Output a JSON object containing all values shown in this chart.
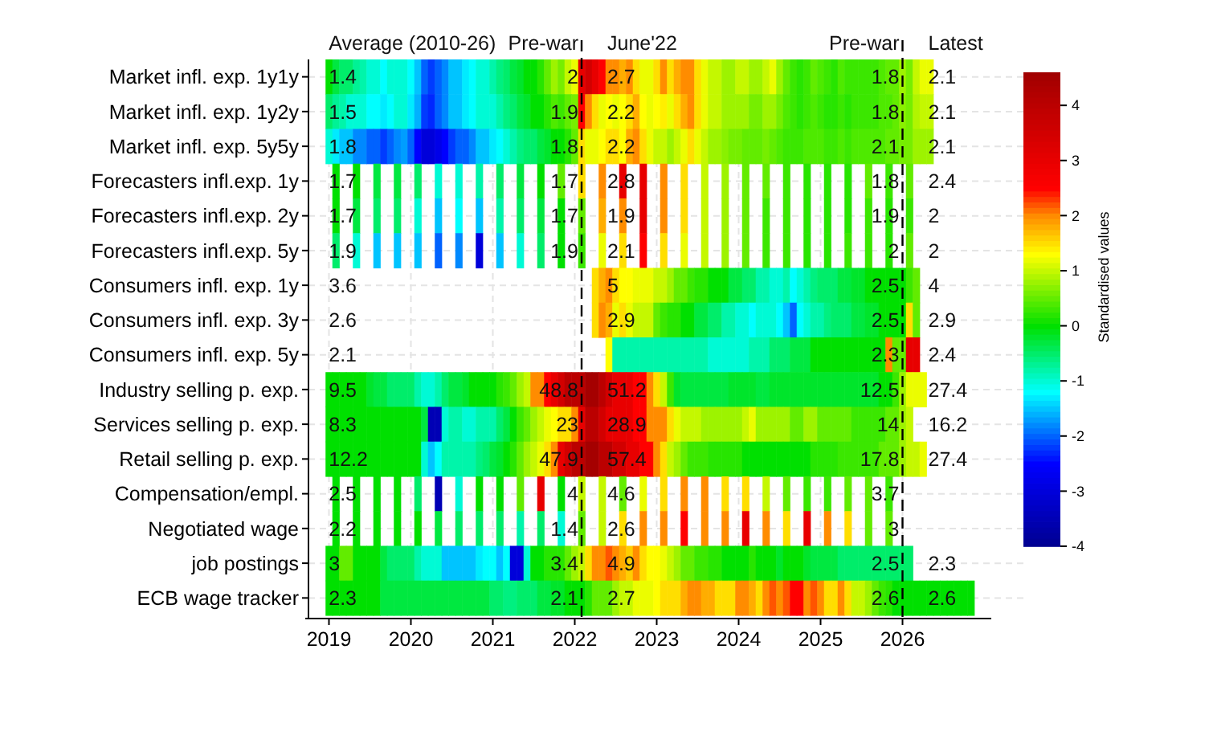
{
  "chart_data": {
    "type": "heatmap",
    "y_categories": [
      "Market infl. exp. 1y1y",
      "Market infl. exp. 1y2y",
      "Market infl. exp. 5y5y",
      "Forecasters infl.exp. 1y",
      "Forecasters infl.exp. 2y",
      "Forecasters infl.exp. 5y",
      "Consumers infl. exp. 1y",
      "Consumers infl. exp. 3y",
      "Consumers infl. exp. 5y",
      "Industry selling p. exp.",
      "Services selling p. exp.",
      "Retail selling p. exp.",
      "Compensation/empl.",
      "Negotiated wage",
      "job postings",
      "ECB wage tracker"
    ],
    "x": [
      "2019-01",
      "2019-02",
      "2019-03",
      "2019-04",
      "2019-05",
      "2019-06",
      "2019-07",
      "2019-08",
      "2019-09",
      "2019-10",
      "2019-11",
      "2019-12",
      "2020-01",
      "2020-02",
      "2020-03",
      "2020-04",
      "2020-05",
      "2020-06",
      "2020-07",
      "2020-08",
      "2020-09",
      "2020-10",
      "2020-11",
      "2020-12",
      "2021-01",
      "2021-02",
      "2021-03",
      "2021-04",
      "2021-05",
      "2021-06",
      "2021-07",
      "2021-08",
      "2021-09",
      "2021-10",
      "2021-11",
      "2021-12",
      "2022-01",
      "2022-02",
      "2022-03",
      "2022-04",
      "2022-05",
      "2022-06",
      "2022-07",
      "2022-08",
      "2022-09",
      "2022-10",
      "2022-11",
      "2022-12",
      "2023-01",
      "2023-02",
      "2023-03",
      "2023-04",
      "2023-05",
      "2023-06",
      "2023-07",
      "2023-08",
      "2023-09",
      "2023-10",
      "2023-11",
      "2023-12",
      "2024-01",
      "2024-02",
      "2024-03",
      "2024-04",
      "2024-05",
      "2024-06",
      "2024-07",
      "2024-08",
      "2024-09",
      "2024-10",
      "2024-11",
      "2024-12",
      "2025-01",
      "2025-02",
      "2025-03",
      "2025-04",
      "2025-05",
      "2025-06",
      "2025-07",
      "2025-08",
      "2025-09",
      "2025-10",
      "2025-11",
      "2025-12",
      "2026-01",
      "2026-02",
      "2026-03",
      "2026-04",
      "2026-05",
      "2026-06",
      "2026-07",
      "2026-08",
      "2026-09",
      "2026-10",
      "2026-11"
    ],
    "cells": [
      [
        0,
        -0.3,
        -0.5,
        -0.5,
        -0.7,
        -0.8,
        -1,
        -1,
        -1.2,
        -1,
        -1,
        -1,
        -1.2,
        -1.5,
        -2,
        -2.2,
        -2,
        -1.8,
        -1.5,
        -1.5,
        -1.3,
        -1.2,
        -1,
        -1,
        -0.8,
        -0.6,
        -0.5,
        -0.3,
        -0.2,
        0,
        0,
        0.2,
        0.5,
        0.8,
        0.6,
        1,
        1.2,
        3,
        3.5,
        3,
        2.5,
        2,
        2,
        1.8,
        2,
        1.5,
        1.2,
        1.2,
        1.5,
        2,
        1.5,
        1.8,
        2,
        2,
        1.5,
        1.2,
        1,
        1,
        0.8,
        0.8,
        1,
        1,
        0.8,
        0.8,
        1,
        1.2,
        0.8,
        0.5,
        0.3,
        0.2,
        0.3,
        0.5,
        0.4,
        0.3,
        0.2,
        0.4,
        0.3,
        0.3,
        0.3,
        0.3,
        0.3,
        0.4,
        0.5,
        0.5,
        0.8,
        0.6,
        1,
        1.2,
        1.2,
        null,
        null,
        null,
        null,
        null,
        null
      ],
      [
        -0.5,
        -0.7,
        -0.8,
        -1,
        -1,
        -1,
        -1.2,
        -1.2,
        -1.3,
        -1.2,
        -1,
        -1,
        -1.3,
        -1.6,
        -2.2,
        -2.3,
        -2,
        -1.8,
        -1.5,
        -1.5,
        -1.3,
        -1.2,
        -1,
        -1,
        -1,
        -0.8,
        -0.6,
        -0.5,
        -0.3,
        -0.2,
        0,
        0,
        0.2,
        0.4,
        0.3,
        0.5,
        0.6,
        2.5,
        2,
        1.5,
        1.2,
        1.3,
        1.2,
        1.3,
        1.5,
        1.8,
        1.3,
        1.2,
        1.3,
        1.4,
        1.2,
        1.5,
        1.8,
        2,
        1.5,
        1.2,
        1,
        1,
        0.8,
        0.8,
        0.8,
        0.8,
        0.6,
        0.6,
        0.8,
        0.8,
        0.6,
        0.4,
        0.3,
        0.2,
        0.3,
        0.4,
        0.3,
        0.2,
        0.2,
        0.3,
        0.2,
        0.3,
        0.3,
        0.3,
        0.3,
        0.4,
        0.4,
        0.5,
        0.7,
        0.6,
        0.9,
        1,
        1,
        null,
        null,
        null,
        null,
        null,
        null
      ],
      [
        -1,
        -1.3,
        -1.5,
        -1.5,
        -1.8,
        -1.8,
        -2,
        -2,
        -2.2,
        -2,
        -1.8,
        -1.7,
        -2,
        -2.5,
        -3,
        -3,
        -2.8,
        -2.5,
        -2.2,
        -2,
        -2,
        -1.8,
        -1.5,
        -1.5,
        -1.3,
        -1.2,
        -1,
        -0.8,
        -0.6,
        -0.5,
        -0.5,
        -0.3,
        -0.2,
        0,
        0,
        0.2,
        0.5,
        1.5,
        1.2,
        1.2,
        1.3,
        1.5,
        1.5,
        1.3,
        1.8,
        2,
        1.5,
        1.2,
        1,
        1,
        0.8,
        1,
        1.2,
        1.5,
        1.2,
        1,
        0.8,
        0.8,
        0.7,
        0.6,
        0.6,
        0.5,
        0.5,
        0.5,
        0.6,
        0.5,
        0.4,
        0.3,
        0.3,
        0.3,
        0.4,
        0.4,
        0.4,
        0.3,
        0.3,
        0.4,
        0.3,
        0.4,
        0.4,
        0.4,
        0.4,
        0.4,
        0.5,
        0.5,
        0.6,
        0.6,
        0.8,
        0.8,
        0.8,
        null,
        null,
        null,
        null,
        null,
        null
      ],
      [
        null,
        0,
        null,
        null,
        0,
        null,
        null,
        -0.3,
        null,
        null,
        -0.3,
        null,
        null,
        -0.5,
        null,
        null,
        -1,
        null,
        null,
        -1,
        null,
        null,
        -0.8,
        null,
        null,
        -0.5,
        null,
        null,
        -0.3,
        null,
        null,
        0,
        null,
        null,
        0.5,
        null,
        null,
        1.5,
        null,
        null,
        2,
        null,
        null,
        3,
        null,
        null,
        3,
        null,
        null,
        2,
        null,
        null,
        1.5,
        null,
        null,
        1,
        null,
        null,
        0.8,
        null,
        null,
        0.5,
        null,
        null,
        0.5,
        null,
        null,
        0.3,
        null,
        null,
        0.2,
        null,
        null,
        0.2,
        null,
        null,
        0.2,
        null,
        null,
        0.5,
        null,
        null,
        0.3,
        null,
        null,
        0.5,
        null,
        null,
        null,
        null,
        null,
        null,
        null,
        null,
        null
      ],
      [
        null,
        0,
        null,
        null,
        -0.3,
        null,
        null,
        -0.5,
        null,
        null,
        -0.5,
        null,
        null,
        -1,
        null,
        null,
        -1.5,
        null,
        null,
        -1.2,
        null,
        null,
        -1.5,
        null,
        null,
        -0.8,
        null,
        null,
        -0.5,
        null,
        null,
        -0.3,
        null,
        null,
        0,
        null,
        null,
        0.5,
        null,
        null,
        1.8,
        null,
        null,
        2,
        null,
        null,
        3,
        null,
        null,
        2,
        null,
        null,
        1.5,
        null,
        null,
        1,
        null,
        null,
        0.8,
        null,
        null,
        0.5,
        null,
        null,
        0.3,
        null,
        null,
        0.3,
        null,
        null,
        0.2,
        null,
        null,
        0.2,
        null,
        null,
        0.2,
        null,
        null,
        0.3,
        null,
        null,
        0.2,
        null,
        null,
        0.3,
        null,
        null,
        null,
        null,
        null,
        null,
        null,
        null,
        null
      ],
      [
        null,
        -0.5,
        null,
        null,
        -1,
        null,
        null,
        -1.5,
        null,
        null,
        -1.5,
        null,
        null,
        -1.5,
        null,
        null,
        -2,
        null,
        null,
        -1.8,
        null,
        null,
        -3,
        null,
        null,
        -1.5,
        null,
        null,
        -1,
        null,
        null,
        -0.5,
        null,
        null,
        0,
        null,
        null,
        0.3,
        null,
        null,
        1.2,
        null,
        null,
        1.5,
        null,
        null,
        2.5,
        null,
        null,
        1.5,
        null,
        null,
        1.2,
        null,
        null,
        1,
        null,
        null,
        0.8,
        null,
        null,
        0.5,
        null,
        null,
        0.3,
        null,
        null,
        0.3,
        null,
        null,
        0.2,
        null,
        null,
        0.2,
        null,
        null,
        0.3,
        null,
        null,
        0.3,
        null,
        null,
        0.2,
        null,
        null,
        0.5,
        null,
        null,
        null,
        null,
        null,
        null,
        null,
        null,
        null
      ],
      [
        null,
        null,
        null,
        null,
        null,
        null,
        null,
        null,
        null,
        null,
        null,
        null,
        null,
        null,
        null,
        null,
        null,
        null,
        null,
        null,
        null,
        null,
        null,
        null,
        null,
        null,
        null,
        null,
        null,
        null,
        null,
        null,
        null,
        null,
        null,
        null,
        null,
        null,
        null,
        1.5,
        1.8,
        2,
        1.5,
        1.3,
        1.3,
        1.2,
        1.2,
        1.2,
        1,
        1,
        0.8,
        0.5,
        0.5,
        0.3,
        0.2,
        0.2,
        0,
        0,
        0,
        -0.3,
        -0.3,
        -0.5,
        -0.5,
        -0.8,
        -0.8,
        -1,
        -1,
        -0.8,
        -1.2,
        -1,
        -0.8,
        -0.6,
        -0.5,
        -0.5,
        -0.5,
        -0.3,
        -0.3,
        -0.2,
        -0.2,
        0,
        0,
        0,
        0,
        0,
        0,
        0.3,
        0.5,
        null,
        null,
        null,
        null,
        null,
        null,
        null,
        null
      ],
      [
        null,
        null,
        null,
        null,
        null,
        null,
        null,
        null,
        null,
        null,
        null,
        null,
        null,
        null,
        null,
        null,
        null,
        null,
        null,
        null,
        null,
        null,
        null,
        null,
        null,
        null,
        null,
        null,
        null,
        null,
        null,
        null,
        null,
        null,
        null,
        null,
        null,
        null,
        null,
        1.5,
        2,
        1.8,
        1.2,
        1.5,
        1.2,
        1,
        1,
        1,
        0.5,
        0.3,
        0.2,
        0.2,
        0,
        0,
        -0.3,
        -0.3,
        -0.5,
        -0.5,
        -0.8,
        -0.8,
        -1,
        -1,
        -1.2,
        -1,
        -1,
        -1,
        -1.2,
        -1.5,
        -2,
        -1.2,
        -1,
        -0.8,
        -0.8,
        -0.6,
        -0.5,
        -0.5,
        -0.5,
        -0.3,
        -0.3,
        -0.2,
        -0.2,
        0,
        0,
        0,
        0,
        1.5,
        0.5,
        null,
        null,
        null,
        null,
        null,
        null,
        null,
        null
      ],
      [
        null,
        null,
        null,
        null,
        null,
        null,
        null,
        null,
        null,
        null,
        null,
        null,
        null,
        null,
        null,
        null,
        null,
        null,
        null,
        null,
        null,
        null,
        null,
        null,
        null,
        null,
        null,
        null,
        null,
        null,
        null,
        null,
        null,
        null,
        null,
        null,
        null,
        null,
        null,
        null,
        null,
        1.3,
        -0.8,
        -0.8,
        -0.8,
        -0.8,
        -0.8,
        -0.8,
        -0.8,
        -0.8,
        -0.8,
        -0.8,
        -0.8,
        -0.8,
        -0.8,
        -0.8,
        -1,
        -1,
        -1,
        -1,
        -1,
        -1,
        -0.8,
        -0.8,
        -0.8,
        -0.5,
        -0.5,
        -0.5,
        -0.3,
        -0.3,
        -0.3,
        0,
        0,
        0,
        0,
        0,
        0,
        0,
        0,
        0,
        0,
        0,
        2,
        0.5,
        0.5,
        3,
        3,
        null,
        null,
        null,
        null,
        null,
        null,
        null,
        null
      ],
      [
        0,
        0,
        0,
        0,
        0,
        0,
        -0.2,
        -0.3,
        -0.3,
        -0.5,
        -0.5,
        -0.5,
        -0.5,
        -0.8,
        -1,
        -1,
        -0.8,
        -0.5,
        -0.3,
        -0.3,
        -0.2,
        0,
        0,
        0,
        0,
        0.2,
        0.3,
        0.5,
        0.8,
        1,
        2,
        2,
        2.5,
        3,
        3.5,
        4,
        4,
        4,
        4.5,
        4.5,
        4,
        3.5,
        3,
        3,
        3,
        2.5,
        2.5,
        2,
        1.5,
        1,
        0.3,
        -0.2,
        -0.3,
        -0.3,
        -0.3,
        -0.3,
        -0.3,
        -0.3,
        -0.3,
        -0.2,
        -0.2,
        -0.2,
        -0.2,
        -0.3,
        -0.3,
        -0.2,
        -0.2,
        -0.2,
        -0.2,
        -0.2,
        -0.2,
        -0.2,
        -0.2,
        -0.2,
        -0.2,
        -0.2,
        -0.2,
        -0.2,
        -0.2,
        -0.2,
        -0.2,
        0,
        0,
        0.3,
        0.8,
        1.2,
        1.2,
        1.2,
        null,
        null,
        null,
        null,
        null,
        null,
        null
      ],
      [
        0,
        0,
        0,
        0,
        0,
        0,
        0,
        0,
        0,
        0,
        0,
        0,
        0,
        0,
        -0.3,
        -3.5,
        -3.5,
        -1,
        -0.8,
        -0.8,
        -1,
        -1,
        -0.8,
        -0.8,
        -0.8,
        -0.5,
        -0.3,
        0,
        0.3,
        0.5,
        0.8,
        1,
        1.2,
        1.3,
        1.5,
        1.5,
        2,
        3,
        4,
        4,
        3.5,
        3,
        3,
        3,
        3,
        2.5,
        2.5,
        2,
        2,
        2,
        1.5,
        1.2,
        1,
        1,
        1,
        0.8,
        0.8,
        0.8,
        0.8,
        0.8,
        0.8,
        1,
        1.2,
        0.8,
        0.8,
        0.8,
        0.8,
        0.8,
        0.5,
        0.5,
        0.8,
        0.8,
        0.5,
        0.5,
        0.5,
        0.5,
        0.5,
        0.3,
        0.3,
        0.3,
        0.3,
        0.3,
        0.5,
        0.5,
        0.8,
        1,
        null,
        null,
        null,
        null,
        null,
        null,
        null,
        null,
        null
      ],
      [
        0,
        0,
        0,
        0,
        0,
        0,
        0,
        0,
        0,
        0,
        0,
        0,
        0,
        0,
        -1,
        -1.5,
        -1.2,
        -0.8,
        -0.8,
        -0.8,
        -0.8,
        -0.8,
        -0.6,
        -0.5,
        -0.3,
        -0.2,
        0,
        0.2,
        0.5,
        0.8,
        1,
        1.2,
        1.5,
        2,
        3,
        3.5,
        4,
        4,
        4.5,
        4.5,
        4,
        4,
        3.5,
        3.5,
        3,
        3,
        2.5,
        2.5,
        2,
        1.5,
        1,
        0.8,
        0.5,
        0.3,
        0.3,
        0.3,
        0.2,
        0.2,
        0.2,
        0.2,
        0.2,
        0,
        0,
        0,
        0,
        0,
        0,
        0,
        0,
        0,
        0,
        0.2,
        0.2,
        0.2,
        0.2,
        0.3,
        0.3,
        0.3,
        0.3,
        0.3,
        0.3,
        0.5,
        0.5,
        0.5,
        0.8,
        1,
        1,
        1.2,
        null,
        null,
        null,
        null,
        null,
        null,
        null
      ],
      [
        null,
        0,
        null,
        null,
        0,
        null,
        null,
        0,
        null,
        null,
        0,
        null,
        null,
        -0.5,
        null,
        null,
        -3.5,
        null,
        null,
        -1,
        null,
        null,
        0,
        null,
        null,
        0,
        null,
        null,
        0.5,
        null,
        null,
        3,
        null,
        null,
        0,
        null,
        null,
        1,
        null,
        null,
        1,
        null,
        null,
        0.5,
        null,
        null,
        1.2,
        null,
        null,
        1.5,
        null,
        null,
        2,
        null,
        null,
        2,
        null,
        null,
        1.5,
        null,
        null,
        1.5,
        null,
        null,
        1,
        null,
        null,
        0.5,
        null,
        null,
        0.3,
        null,
        null,
        0.3,
        null,
        null,
        0.5,
        null,
        null,
        0.5,
        null,
        null,
        0.3,
        null,
        null,
        null,
        null,
        null,
        null,
        null,
        null,
        null,
        null,
        null,
        null
      ],
      [
        null,
        0,
        null,
        null,
        0,
        null,
        null,
        0,
        null,
        null,
        0,
        null,
        null,
        0,
        null,
        null,
        -0.3,
        null,
        null,
        -0.5,
        null,
        null,
        -0.5,
        null,
        null,
        -0.5,
        null,
        null,
        -0.8,
        null,
        null,
        -0.5,
        null,
        null,
        -1,
        null,
        null,
        0.5,
        null,
        null,
        1,
        null,
        null,
        1.5,
        null,
        null,
        2,
        null,
        null,
        2,
        null,
        null,
        2.5,
        null,
        null,
        2,
        null,
        null,
        2,
        null,
        null,
        3,
        null,
        null,
        2,
        null,
        null,
        1.5,
        null,
        null,
        3,
        null,
        null,
        2,
        null,
        null,
        1.5,
        null,
        null,
        0.5,
        null,
        null,
        0.5,
        null,
        null,
        null,
        null,
        null,
        null,
        null,
        null,
        null,
        null,
        null,
        null
      ],
      [
        0,
        0,
        0.5,
        0.5,
        0,
        0,
        0,
        0,
        -0.3,
        -0.5,
        -0.5,
        -0.5,
        -0.5,
        -0.8,
        -1,
        -1,
        -1,
        -1.5,
        -1.5,
        -1.5,
        -1.5,
        -1.5,
        -1.3,
        -1.2,
        -1.2,
        -1.5,
        -1.2,
        -3,
        -3,
        -1,
        0,
        0,
        0.2,
        0.2,
        0.2,
        0.5,
        0.8,
        1,
        1.5,
        2,
        2,
        2.2,
        2,
        1.8,
        1.6,
        2,
        1.5,
        1.3,
        1.3,
        1.2,
        1,
        0.8,
        0.5,
        0.5,
        0.3,
        0.3,
        0.2,
        0.2,
        0,
        0,
        0,
        0,
        0.2,
        0,
        0,
        0,
        -0.2,
        0,
        0,
        0,
        -0.2,
        -0.3,
        -0.3,
        -0.3,
        -0.3,
        -0.5,
        -0.5,
        -0.5,
        -0.5,
        -0.5,
        -0.5,
        -0.5,
        -0.5,
        -0.5,
        -0.5,
        -0.5,
        null,
        null,
        null,
        null,
        null,
        null,
        null,
        null,
        null
      ],
      [
        0,
        0,
        0,
        0,
        0,
        0,
        0,
        0,
        -0.3,
        -0.3,
        -0.3,
        -0.3,
        -0.3,
        -0.3,
        -0.3,
        -0.3,
        -0.3,
        -0.3,
        -0.3,
        -0.3,
        -0.3,
        -0.3,
        -0.3,
        -0.3,
        -0.5,
        -0.5,
        -0.6,
        -0.6,
        -0.5,
        -0.5,
        -0.5,
        -0.3,
        -0.3,
        -0.2,
        -0.2,
        0,
        0,
        0,
        0.2,
        0.5,
        0.5,
        0.5,
        0.8,
        1,
        1,
        1.2,
        1.2,
        1.2,
        1.3,
        1.5,
        1.5,
        1.5,
        1.8,
        2,
        2,
        1.8,
        1.8,
        1.5,
        1.5,
        1.5,
        2,
        2,
        1.8,
        1.5,
        2,
        2.2,
        2,
        2.2,
        2.5,
        2.5,
        2,
        2.2,
        2,
        1.5,
        1.5,
        2,
        1.5,
        1,
        1,
        0.8,
        0.5,
        0.3,
        0.2,
        0,
        0,
        0,
        0,
        0,
        0,
        0,
        0,
        0,
        0,
        0,
        0
      ]
    ],
    "xlim": [
      "2018-10",
      "2027-02"
    ],
    "xticks": [
      "2019",
      "2020",
      "2021",
      "2022",
      "2023",
      "2024",
      "2025",
      "2026"
    ],
    "clim": [
      -4,
      4.6
    ],
    "cticks": [
      -4,
      -3,
      -2,
      -1,
      0,
      1,
      2,
      3,
      4
    ],
    "clabel": "Standardised values",
    "grid": true,
    "ref_lines": [
      {
        "axis": "x",
        "value": "2022-02",
        "line_style": "dashed"
      },
      {
        "axis": "x",
        "value": "2026-01",
        "line_style": "dashed"
      }
    ],
    "annotations": [
      "Average (2010-26)",
      "Pre-war",
      "June'22",
      "Pre-war",
      "Latest",
      "1.4",
      "2",
      "2.7",
      "1.8",
      "2.1",
      "1.5",
      "1.9",
      "2.2",
      "1.8",
      "2.1",
      "1.8",
      "1.8",
      "2.2",
      "2.1",
      "2.1",
      "1.7",
      "1.7",
      "2.8",
      "1.8",
      "2.4",
      "1.7",
      "1.7",
      "1.9",
      "1.9",
      "2",
      "1.9",
      "1.9",
      "2.1",
      "2",
      "2",
      "3.6",
      null,
      "5",
      "2.5",
      "4",
      "2.6",
      null,
      "2.9",
      "2.5",
      "2.9",
      "2.1",
      null,
      null,
      "2.3",
      "2.4",
      "9.5",
      "48.8",
      "51.2",
      "12.5",
      "27.4",
      "8.3",
      "23",
      "28.9",
      "14",
      "16.2",
      "12.2",
      "47.9",
      "57.4",
      "17.8",
      "27.4",
      "2.5",
      "4",
      "4.6",
      "3.7",
      null,
      "2.2",
      "1.4",
      "2.6",
      "3",
      null,
      "3",
      "3.4",
      "4.9",
      "2.5",
      "2.3",
      "2.3",
      "2.1",
      "2.7",
      "2.6",
      "2.6"
    ]
  }
}
